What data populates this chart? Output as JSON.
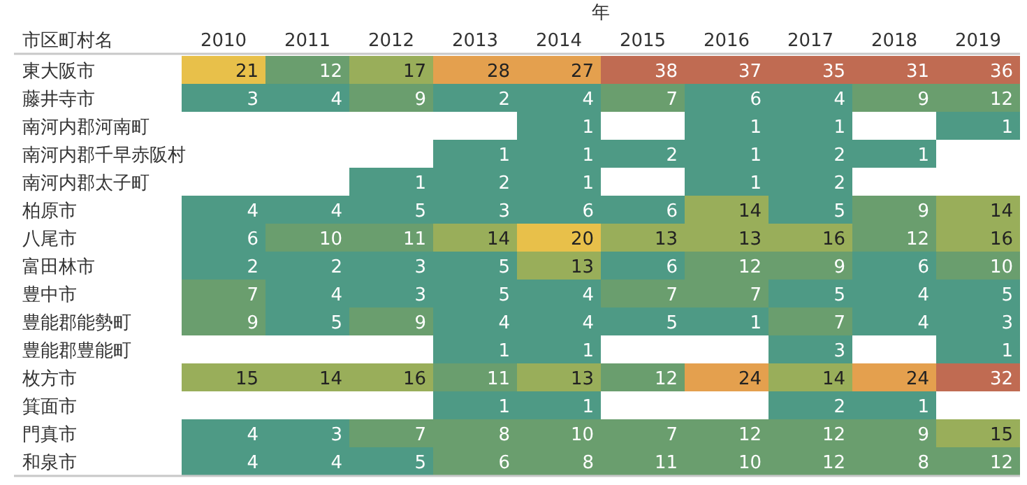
{
  "chart_data": {
    "type": "heatmap",
    "title": "年",
    "ylabel": "市区町村名",
    "categories": [
      "2010",
      "2011",
      "2012",
      "2013",
      "2014",
      "2015",
      "2016",
      "2017",
      "2018",
      "2019"
    ],
    "y_categories": [
      "東大阪市",
      "藤井寺市",
      "南河内郡河南町",
      "南河内郡千早赤阪村",
      "南河内郡太子町",
      "柏原市",
      "八尾市",
      "富田林市",
      "豊中市",
      "豊能郡能勢町",
      "豊能郡豊能町",
      "枚方市",
      "箕面市",
      "門真市",
      "和泉市"
    ],
    "cells": [
      [
        21,
        12,
        17,
        28,
        27,
        38,
        37,
        35,
        31,
        36
      ],
      [
        3,
        4,
        9,
        2,
        4,
        7,
        6,
        4,
        9,
        12
      ],
      [
        null,
        null,
        null,
        null,
        1,
        null,
        1,
        1,
        null,
        1
      ],
      [
        null,
        null,
        null,
        1,
        1,
        2,
        1,
        2,
        1,
        null
      ],
      [
        null,
        null,
        1,
        2,
        1,
        null,
        1,
        2,
        null,
        null
      ],
      [
        4,
        4,
        5,
        3,
        6,
        6,
        14,
        5,
        9,
        14
      ],
      [
        6,
        10,
        11,
        14,
        20,
        13,
        13,
        16,
        12,
        16
      ],
      [
        2,
        2,
        3,
        5,
        13,
        6,
        12,
        9,
        6,
        10
      ],
      [
        7,
        4,
        3,
        5,
        4,
        7,
        7,
        5,
        4,
        5
      ],
      [
        9,
        5,
        9,
        4,
        4,
        5,
        1,
        7,
        4,
        3
      ],
      [
        null,
        null,
        null,
        1,
        1,
        null,
        null,
        3,
        null,
        1
      ],
      [
        15,
        14,
        16,
        11,
        13,
        12,
        24,
        14,
        24,
        32
      ],
      [
        null,
        null,
        null,
        1,
        1,
        null,
        null,
        2,
        1,
        null
      ],
      [
        4,
        3,
        7,
        8,
        10,
        7,
        12,
        12,
        9,
        15
      ],
      [
        4,
        4,
        5,
        6,
        8,
        11,
        10,
        12,
        8,
        12
      ]
    ],
    "colors": [
      [
        "#e8c04a",
        "#6a9e6e",
        "#99ae5a",
        "#e4a04e",
        "#e4a04e",
        "#c06b52",
        "#c06b52",
        "#c06b52",
        "#c06b52",
        "#c06b52"
      ],
      [
        "#4e9a85",
        "#4e9a85",
        "#6a9e6e",
        "#4e9a85",
        "#4e9a85",
        "#6a9e6e",
        "#4e9a85",
        "#4e9a85",
        "#6a9e6e",
        "#6a9e6e"
      ],
      [
        null,
        null,
        null,
        null,
        "#4e9a85",
        null,
        "#4e9a85",
        "#4e9a85",
        null,
        "#4e9a85"
      ],
      [
        null,
        null,
        null,
        "#4e9a85",
        "#4e9a85",
        "#4e9a85",
        "#4e9a85",
        "#4e9a85",
        "#4e9a85",
        null
      ],
      [
        null,
        null,
        "#4e9a85",
        "#4e9a85",
        "#4e9a85",
        null,
        "#4e9a85",
        "#4e9a85",
        null,
        null
      ],
      [
        "#4e9a85",
        "#4e9a85",
        "#4e9a85",
        "#4e9a85",
        "#4e9a85",
        "#4e9a85",
        "#99ae5a",
        "#4e9a85",
        "#6a9e6e",
        "#99ae5a"
      ],
      [
        "#4e9a85",
        "#6a9e6e",
        "#6a9e6e",
        "#99ae5a",
        "#e8c04a",
        "#99ae5a",
        "#99ae5a",
        "#99ae5a",
        "#6a9e6e",
        "#99ae5a"
      ],
      [
        "#4e9a85",
        "#4e9a85",
        "#4e9a85",
        "#4e9a85",
        "#99ae5a",
        "#4e9a85",
        "#6a9e6e",
        "#6a9e6e",
        "#4e9a85",
        "#6a9e6e"
      ],
      [
        "#6a9e6e",
        "#4e9a85",
        "#4e9a85",
        "#4e9a85",
        "#4e9a85",
        "#6a9e6e",
        "#6a9e6e",
        "#4e9a85",
        "#4e9a85",
        "#4e9a85"
      ],
      [
        "#6a9e6e",
        "#4e9a85",
        "#6a9e6e",
        "#4e9a85",
        "#4e9a85",
        "#4e9a85",
        "#4e9a85",
        "#6a9e6e",
        "#4e9a85",
        "#4e9a85"
      ],
      [
        null,
        null,
        null,
        "#4e9a85",
        "#4e9a85",
        null,
        null,
        "#4e9a85",
        null,
        "#4e9a85"
      ],
      [
        "#99ae5a",
        "#99ae5a",
        "#99ae5a",
        "#6a9e6e",
        "#99ae5a",
        "#6a9e6e",
        "#e4a04e",
        "#99ae5a",
        "#e4a04e",
        "#c06b52"
      ],
      [
        null,
        null,
        null,
        "#4e9a85",
        "#4e9a85",
        null,
        null,
        "#4e9a85",
        "#4e9a85",
        null
      ],
      [
        "#4e9a85",
        "#4e9a85",
        "#6a9e6e",
        "#6a9e6e",
        "#6a9e6e",
        "#6a9e6e",
        "#6a9e6e",
        "#6a9e6e",
        "#6a9e6e",
        "#99ae5a"
      ],
      [
        "#4e9a85",
        "#4e9a85",
        "#4e9a85",
        "#6a9e6e",
        "#6a9e6e",
        "#6a9e6e",
        "#6a9e6e",
        "#6a9e6e",
        "#6a9e6e",
        "#6a9e6e"
      ]
    ],
    "data_labels": true
  }
}
